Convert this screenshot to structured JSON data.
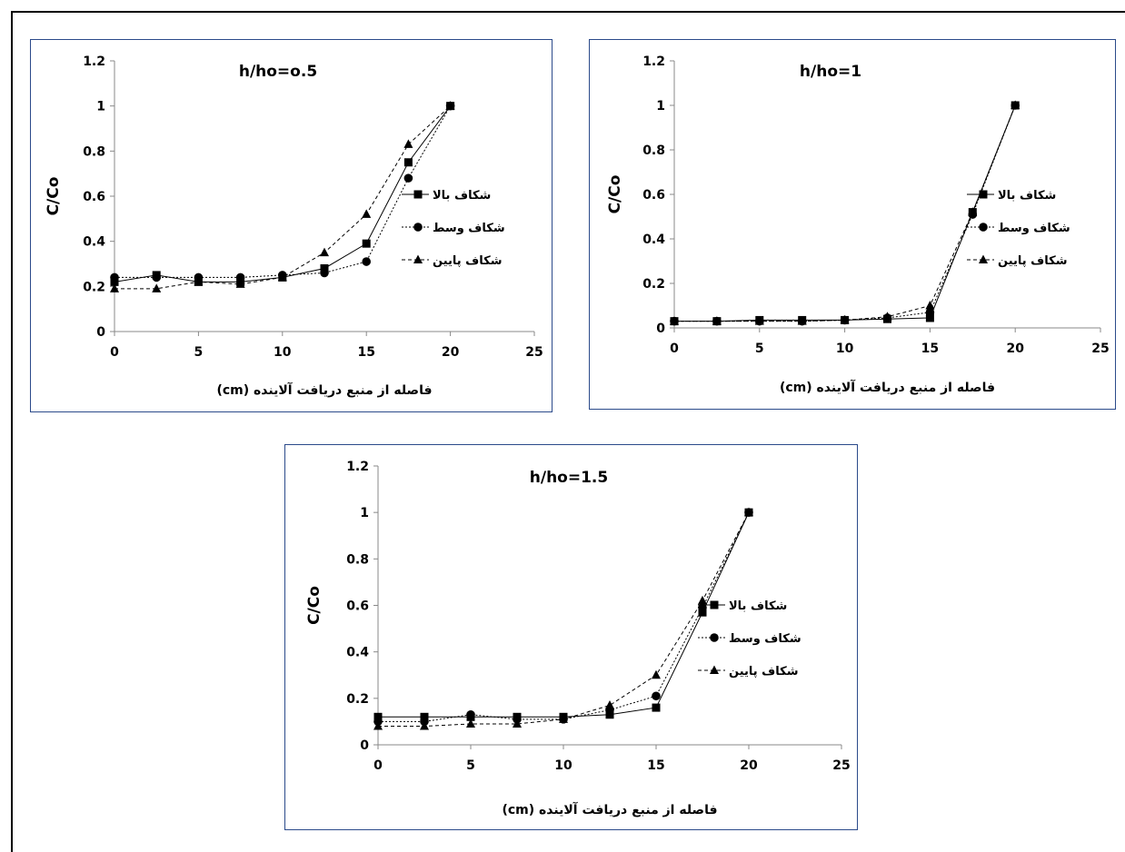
{
  "chart_data": [
    {
      "type": "line",
      "title": "h/ho=o.5",
      "xlabel": "فاصله از منبع دریافت آلاینده (cm)",
      "ylabel": "C/Co",
      "xlim": [
        0,
        25
      ],
      "ylim": [
        0,
        1.2
      ],
      "x_ticks": [
        "0",
        "5",
        "10",
        "15",
        "20",
        "25"
      ],
      "y_ticks": [
        "0",
        "0.2",
        "0.4",
        "0.6",
        "0.8",
        "1",
        "1.2"
      ],
      "legend_position": "right",
      "x": [
        0,
        2.5,
        5,
        7.5,
        10,
        12.5,
        15,
        17.5,
        20
      ],
      "series": [
        {
          "name": "شکاف بالا",
          "marker": "square",
          "dash": "solid",
          "values": [
            0.22,
            0.25,
            0.22,
            0.22,
            0.24,
            0.28,
            0.39,
            0.75,
            1.0
          ]
        },
        {
          "name": "شکاف وسط",
          "marker": "circle",
          "dash": "dotted",
          "values": [
            0.24,
            0.24,
            0.24,
            0.24,
            0.25,
            0.26,
            0.31,
            0.68,
            1.0
          ]
        },
        {
          "name": "شکاف پایین",
          "marker": "triangle",
          "dash": "dashed",
          "values": [
            0.19,
            0.19,
            0.22,
            0.21,
            0.24,
            0.35,
            0.52,
            0.83,
            1.0
          ]
        }
      ]
    },
    {
      "type": "line",
      "title": "h/ho=1",
      "xlabel": "فاصله از منبع دریافت آلاینده (cm)",
      "ylabel": "C/Co",
      "xlim": [
        0,
        25
      ],
      "ylim": [
        0,
        1.2
      ],
      "x_ticks": [
        "0",
        "5",
        "10",
        "15",
        "20",
        "25"
      ],
      "y_ticks": [
        "0",
        "0.2",
        "0.4",
        "0.6",
        "0.8",
        "1",
        "1.2"
      ],
      "legend_position": "right",
      "x": [
        0,
        2.5,
        5,
        7.5,
        10,
        12.5,
        15,
        17.5,
        20
      ],
      "series": [
        {
          "name": "شکاف بالا",
          "marker": "square",
          "dash": "solid",
          "values": [
            0.03,
            0.03,
            0.035,
            0.035,
            0.035,
            0.04,
            0.045,
            0.52,
            1.0
          ]
        },
        {
          "name": "شکاف وسط",
          "marker": "circle",
          "dash": "dotted",
          "values": [
            0.03,
            0.03,
            0.03,
            0.03,
            0.035,
            0.045,
            0.07,
            0.51,
            1.0
          ]
        },
        {
          "name": "شکاف پایین",
          "marker": "triangle",
          "dash": "dashed",
          "values": [
            0.03,
            0.03,
            0.03,
            0.03,
            0.035,
            0.05,
            0.1,
            0.52,
            1.0
          ]
        }
      ]
    },
    {
      "type": "line",
      "title": "h/ho=1.5",
      "xlabel": "فاصله از منبع دریافت آلاینده (cm)",
      "ylabel": "C/Co",
      "xlim": [
        0,
        25
      ],
      "ylim": [
        0,
        1.2
      ],
      "x_ticks": [
        "0",
        "5",
        "10",
        "15",
        "20",
        "25"
      ],
      "y_ticks": [
        "0",
        "0.2",
        "0.4",
        "0.6",
        "0.8",
        "1",
        "1.2"
      ],
      "legend_position": "right",
      "x": [
        0,
        2.5,
        5,
        7.5,
        10,
        12.5,
        15,
        17.5,
        20
      ],
      "series": [
        {
          "name": "شکاف بالا",
          "marker": "square",
          "dash": "solid",
          "values": [
            0.12,
            0.12,
            0.12,
            0.12,
            0.12,
            0.13,
            0.16,
            0.57,
            1.0
          ]
        },
        {
          "name": "شکاف وسط",
          "marker": "circle",
          "dash": "dotted",
          "values": [
            0.1,
            0.1,
            0.13,
            0.11,
            0.11,
            0.15,
            0.21,
            0.59,
            1.0
          ]
        },
        {
          "name": "شکاف پایین",
          "marker": "triangle",
          "dash": "dashed",
          "values": [
            0.08,
            0.08,
            0.09,
            0.09,
            0.11,
            0.17,
            0.3,
            0.62,
            1.0
          ]
        }
      ]
    }
  ]
}
